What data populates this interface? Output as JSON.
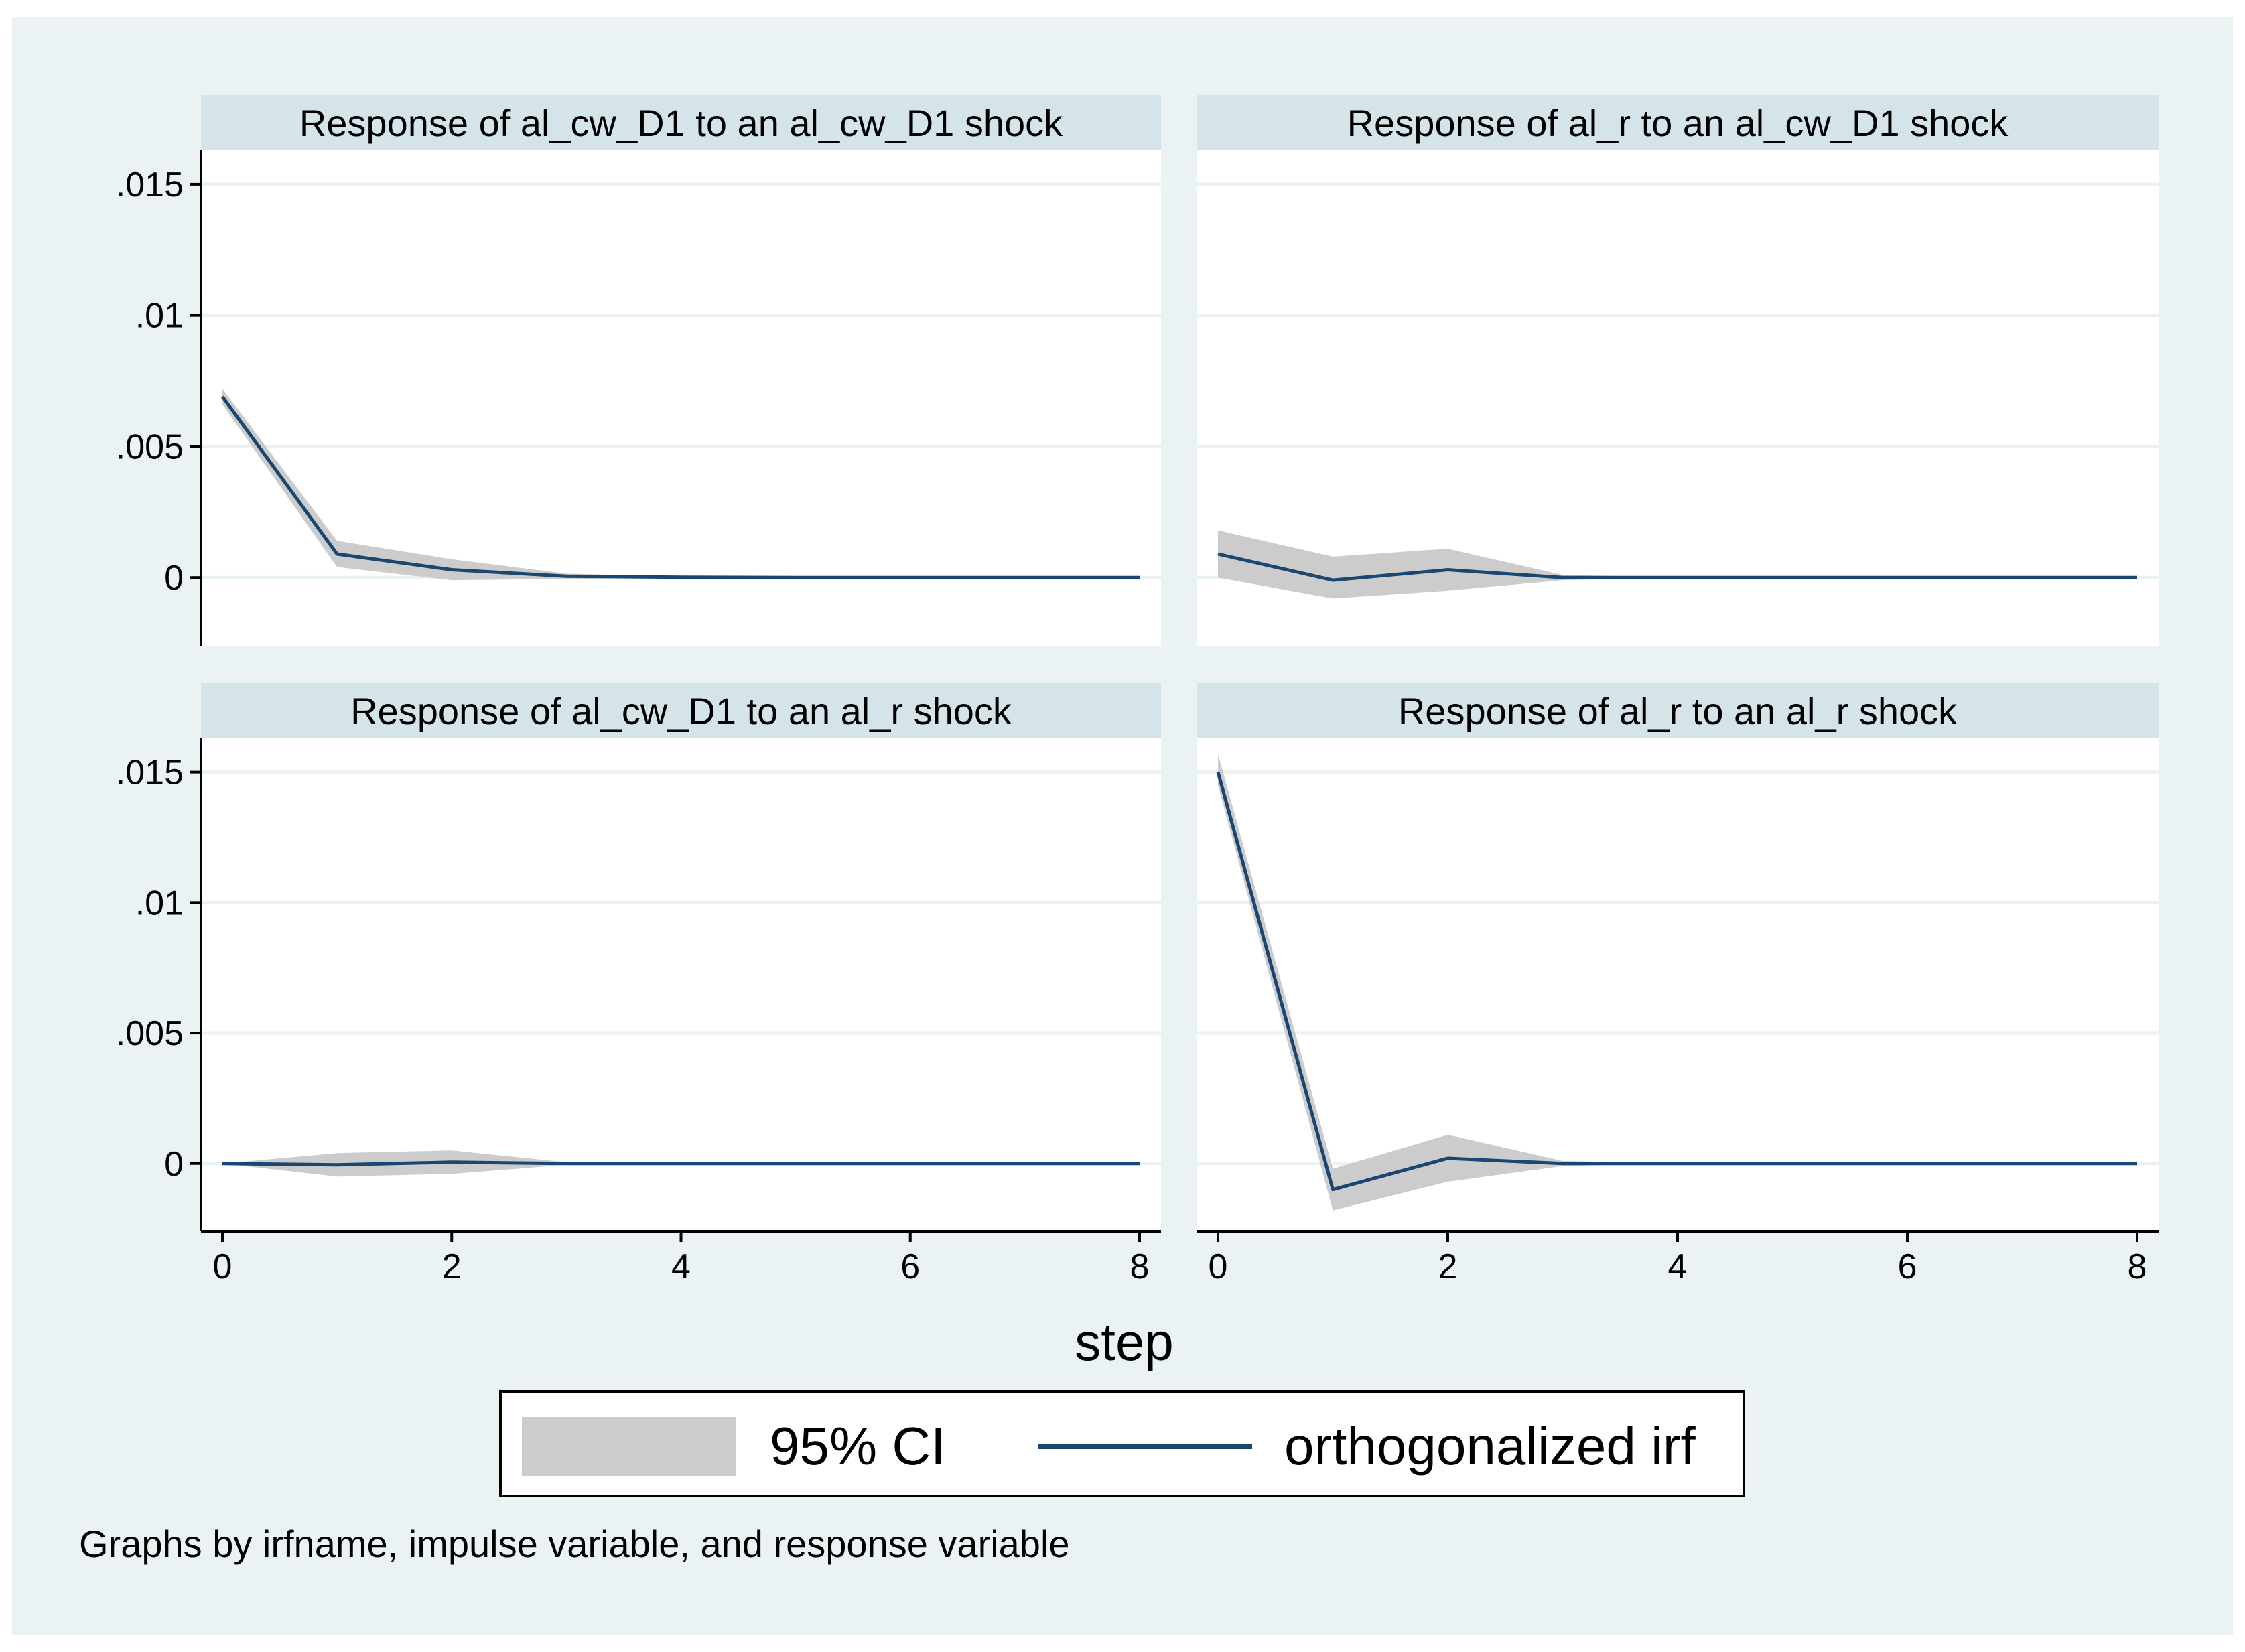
{
  "colors": {
    "background": "#eaf2f3",
    "panel": "#ffffff",
    "strip": "#d5e4e8",
    "grid": "#eaf2f3",
    "ci_band": "#cccccc",
    "irf_line": "#1a476f"
  },
  "chart_data": [
    {
      "type": "area",
      "title": "Response of al_cw_D1 to an al_cw_D1 shock",
      "x": [
        0,
        1,
        2,
        3,
        4,
        5,
        6,
        7,
        8
      ],
      "ylim": [
        -0.0026,
        0.0163
      ],
      "yticks": [
        0,
        0.005,
        0.01,
        0.015
      ],
      "ytick_labels": [
        "0",
        ".005",
        ".01",
        ".015"
      ],
      "series": [
        {
          "name": "orthogonalized irf",
          "values": [
            0.0069,
            0.0009,
            0.0003,
            5e-05,
            1e-05,
            0,
            0,
            0,
            0
          ]
        },
        {
          "name": "95% CI lower",
          "values": [
            0.0066,
            0.0004,
            -0.0001,
            -5e-05,
            -1e-05,
            0,
            0,
            0,
            0
          ]
        },
        {
          "name": "95% CI upper",
          "values": [
            0.0072,
            0.0014,
            0.0007,
            0.00015,
            3e-05,
            0,
            0,
            0,
            0
          ]
        }
      ]
    },
    {
      "type": "area",
      "title": "Response of al_r to an al_cw_D1 shock",
      "x": [
        0,
        1,
        2,
        3,
        4,
        5,
        6,
        7,
        8
      ],
      "ylim": [
        -0.0026,
        0.0163
      ],
      "yticks": [
        0,
        0.005,
        0.01,
        0.015
      ],
      "ytick_labels": [
        "0",
        ".005",
        ".01",
        ".015"
      ],
      "series": [
        {
          "name": "orthogonalized irf",
          "values": [
            0.0009,
            -0.0001,
            0.0003,
            0.0,
            0.0,
            0,
            0,
            0,
            0
          ]
        },
        {
          "name": "95% CI lower",
          "values": [
            0.0,
            -0.0008,
            -0.0005,
            -0.0001,
            0.0,
            0,
            0,
            0,
            0
          ]
        },
        {
          "name": "95% CI upper",
          "values": [
            0.0018,
            0.0008,
            0.0011,
            0.0001,
            0.0,
            0,
            0,
            0,
            0
          ]
        }
      ]
    },
    {
      "type": "area",
      "title": "Response of al_cw_D1 to an al_r shock",
      "x": [
        0,
        1,
        2,
        3,
        4,
        5,
        6,
        7,
        8
      ],
      "ylim": [
        -0.0026,
        0.0163
      ],
      "yticks": [
        0,
        0.005,
        0.01,
        0.015
      ],
      "ytick_labels": [
        "0",
        ".005",
        ".01",
        ".015"
      ],
      "series": [
        {
          "name": "orthogonalized irf",
          "values": [
            0,
            -5e-05,
            5e-05,
            0,
            0,
            0,
            0,
            0,
            0
          ]
        },
        {
          "name": "95% CI lower",
          "values": [
            0,
            -0.0005,
            -0.0004,
            -5e-05,
            0,
            0,
            0,
            0,
            0
          ]
        },
        {
          "name": "95% CI upper",
          "values": [
            0,
            0.0004,
            0.0005,
            5e-05,
            0,
            0,
            0,
            0,
            0
          ]
        }
      ]
    },
    {
      "type": "area",
      "title": "Response of al_r to an al_r shock",
      "x": [
        0,
        1,
        2,
        3,
        4,
        5,
        6,
        7,
        8
      ],
      "ylim": [
        -0.0026,
        0.0163
      ],
      "yticks": [
        0,
        0.005,
        0.01,
        0.015
      ],
      "ytick_labels": [
        "0",
        ".005",
        ".01",
        ".015"
      ],
      "series": [
        {
          "name": "orthogonalized irf",
          "values": [
            0.015,
            -0.001,
            0.0002,
            0.0,
            0.0,
            0,
            0,
            0,
            0
          ]
        },
        {
          "name": "95% CI lower",
          "values": [
            0.0145,
            -0.0018,
            -0.0007,
            -0.0001,
            0.0,
            0,
            0,
            0,
            0
          ]
        },
        {
          "name": "95% CI upper",
          "values": [
            0.0157,
            -0.0002,
            0.0011,
            0.0001,
            0.0,
            0,
            0,
            0,
            0
          ]
        }
      ]
    }
  ],
  "x_axis": {
    "title": "step",
    "ticks": [
      0,
      2,
      4,
      6,
      8
    ],
    "tick_labels": [
      "0",
      "2",
      "4",
      "6",
      "8"
    ]
  },
  "legend": {
    "ci_label": "95% CI",
    "irf_label": "orthogonalized irf"
  },
  "note": "Graphs by irfname, impulse variable, and response variable"
}
